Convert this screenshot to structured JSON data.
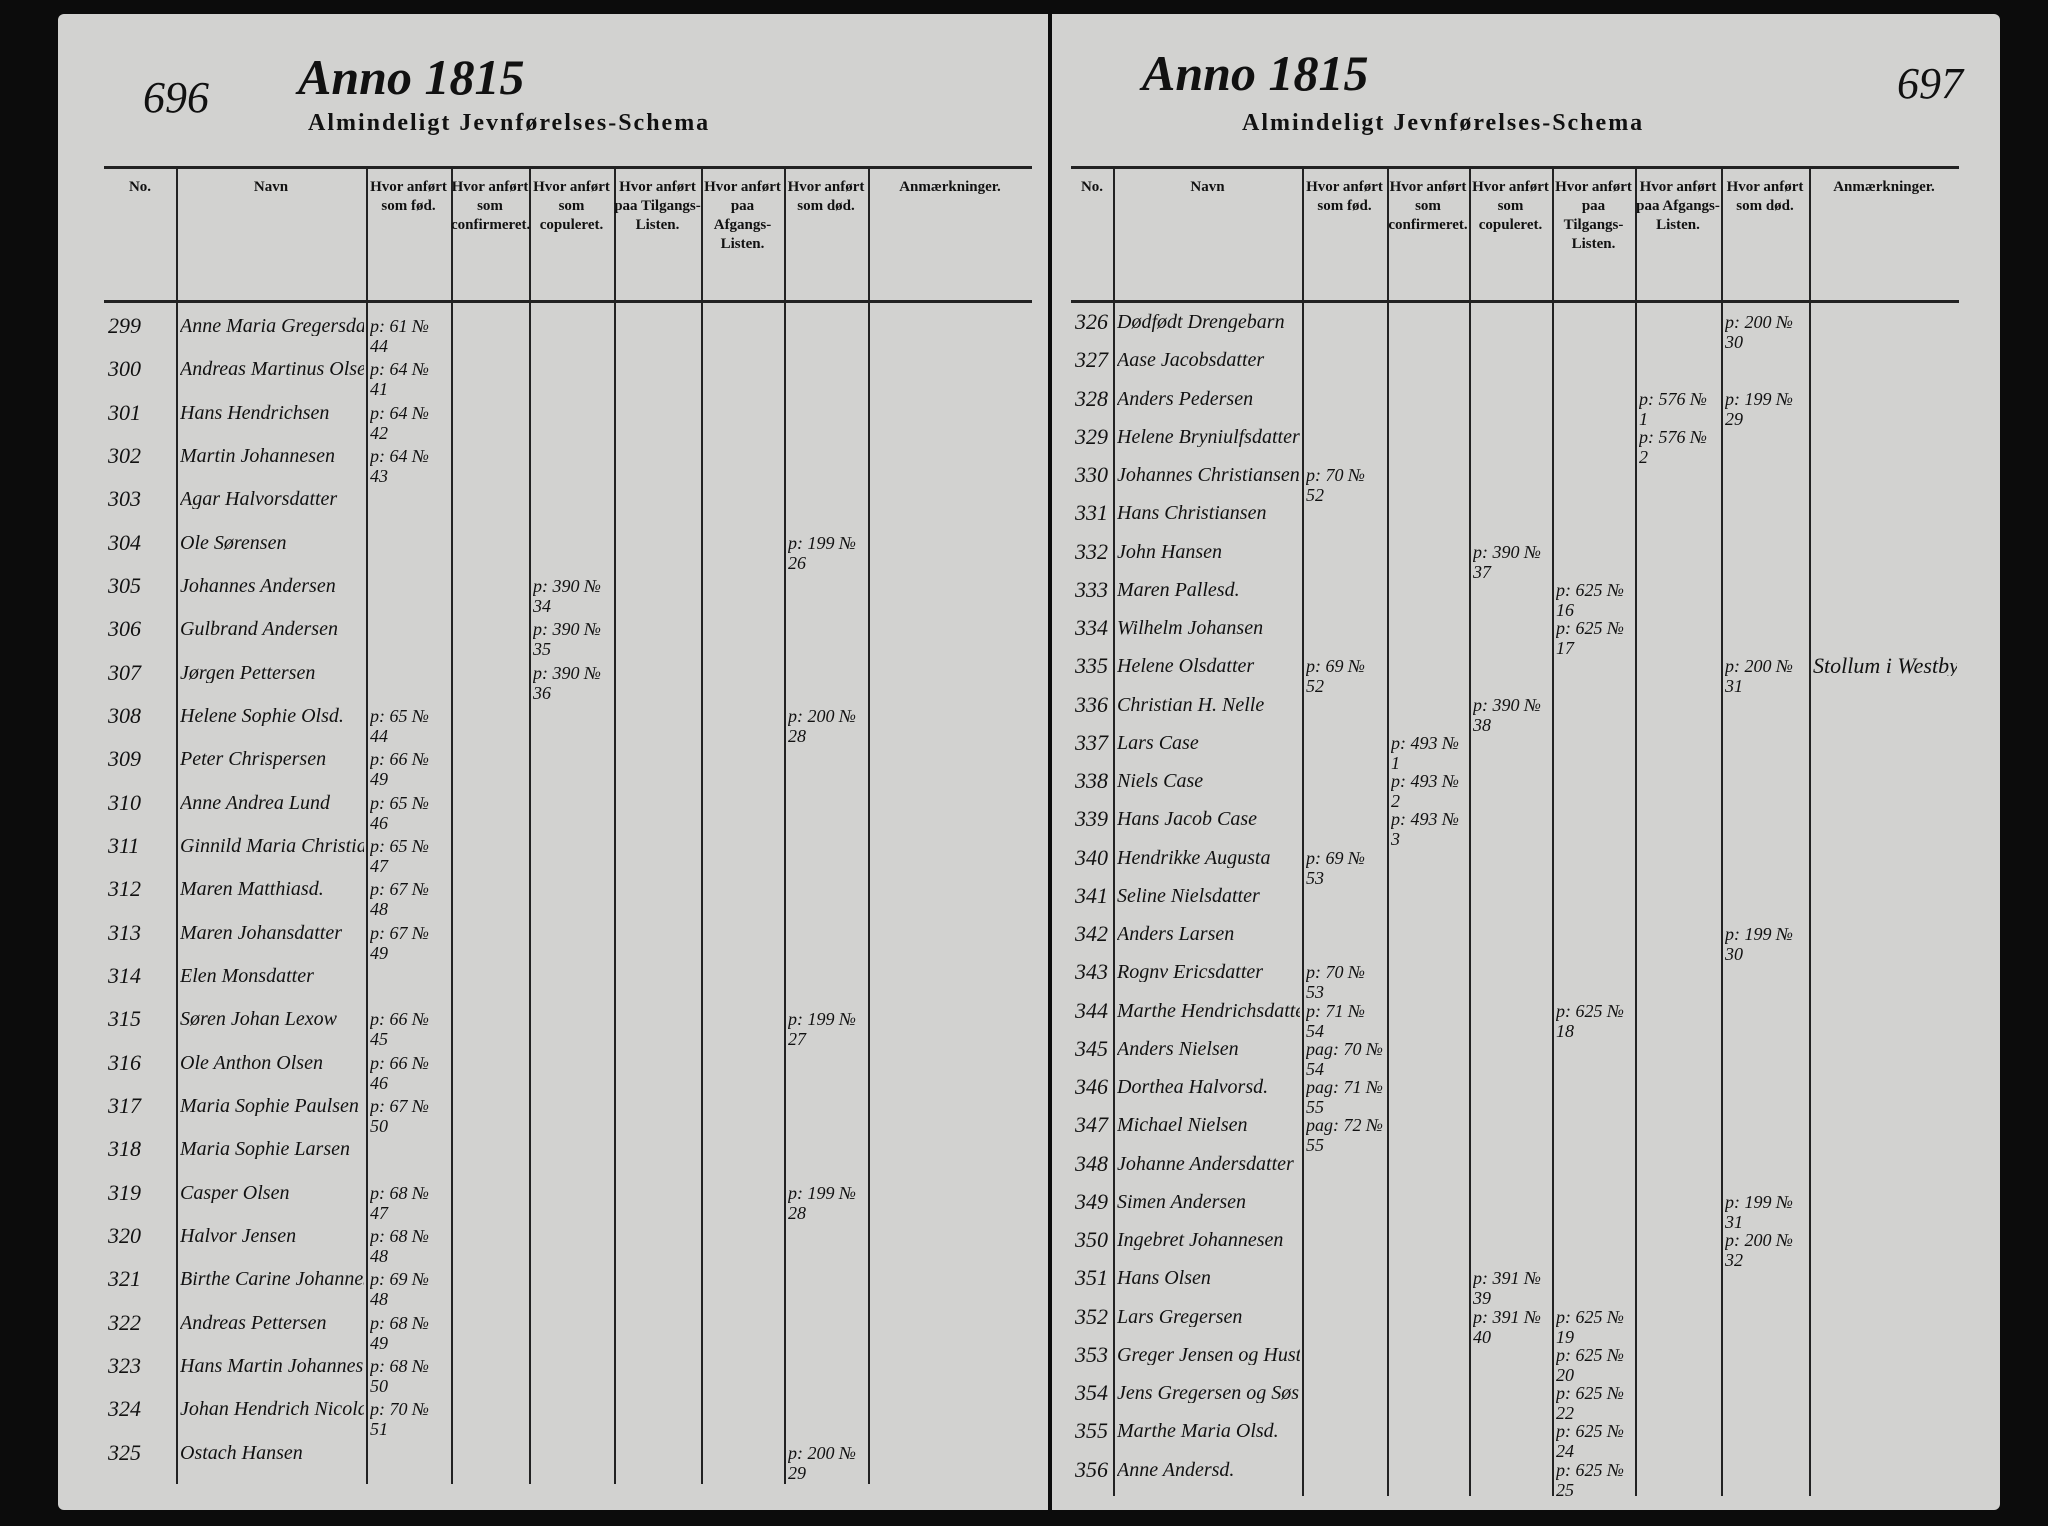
{
  "left_page": {
    "page_number": "696",
    "year_heading": "Anno 1815",
    "title": "Almindeligt Jevnførelses-Schema",
    "columns": [
      "No.",
      "Navn",
      "Hvor anført som fød.",
      "Hvor anført som confirmeret.",
      "Hvor anført som copuleret.",
      "Hvor anført paa Tilgangs-Listen.",
      "Hvor anført paa Afgangs-Listen.",
      "Hvor anført som død.",
      "Anmærkninger."
    ],
    "rows": [
      {
        "no": "299",
        "name": "Anne Maria Gregersdatter",
        "born": "p: 61 № 44"
      },
      {
        "no": "300",
        "name": "Andreas Martinus Olsen",
        "born": "p: 64 № 41"
      },
      {
        "no": "301",
        "name": "Hans Hendrichsen",
        "born": "p: 64 № 42"
      },
      {
        "no": "302",
        "name": "Martin Johannesen",
        "born": "p: 64 № 43"
      },
      {
        "no": "303",
        "name": "Agar Halvorsdatter"
      },
      {
        "no": "304",
        "name": "Ole Sørensen",
        "died": "p: 199 № 26"
      },
      {
        "no": "305",
        "name": "Johannes Andersen",
        "married": "p: 390 № 34"
      },
      {
        "no": "306",
        "name": "Gulbrand Andersen",
        "married": "p: 390 № 35"
      },
      {
        "no": "307",
        "name": "Jørgen Pettersen",
        "married": "p: 390 № 36"
      },
      {
        "no": "308",
        "name": "Helene Sophie Olsd.",
        "born": "p: 65 № 44",
        "died": "p: 200 № 28"
      },
      {
        "no": "309",
        "name": "Peter Chrispersen",
        "born": "p: 66 № 49"
      },
      {
        "no": "310",
        "name": "Anne Andrea Lund",
        "born": "p: 65 № 46"
      },
      {
        "no": "311",
        "name": "Ginnild Maria Christiansdatter",
        "born": "p: 65 № 47"
      },
      {
        "no": "312",
        "name": "Maren Matthiasd.",
        "born": "p: 67 № 48"
      },
      {
        "no": "313",
        "name": "Maren Johansdatter",
        "born": "p: 67 № 49"
      },
      {
        "no": "314",
        "name": "Elen Monsdatter"
      },
      {
        "no": "315",
        "name": "Søren Johan Lexow",
        "born": "p: 66 № 45",
        "died": "p: 199 № 27"
      },
      {
        "no": "316",
        "name": "Ole Anthon Olsen",
        "born": "p: 66 № 46"
      },
      {
        "no": "317",
        "name": "Maria Sophie Paulsen",
        "born": "p: 67 № 50"
      },
      {
        "no": "318",
        "name": "Maria Sophie Larsen"
      },
      {
        "no": "319",
        "name": "Casper Olsen",
        "born": "p: 68 № 47",
        "died": "p: 199 № 28"
      },
      {
        "no": "320",
        "name": "Halvor Jensen",
        "born": "p: 68 № 48"
      },
      {
        "no": "321",
        "name": "Birthe Carine Johannesdatter",
        "born": "p: 69 № 48"
      },
      {
        "no": "322",
        "name": "Andreas Pettersen",
        "born": "p: 68 № 49"
      },
      {
        "no": "323",
        "name": "Hans Martin Johannesen",
        "born": "p: 68 № 50"
      },
      {
        "no": "324",
        "name": "Johan Hendrich Nicolaysen",
        "born": "p: 70 № 51"
      },
      {
        "no": "325",
        "name": "Ostach Hansen",
        "died": "p: 200 № 29"
      }
    ]
  },
  "right_page": {
    "page_number": "697",
    "year_heading": "Anno 1815",
    "title": "Almindeligt Jevnførelses-Schema",
    "columns": [
      "No.",
      "Navn",
      "Hvor anført som fød.",
      "Hvor anført som confirmeret.",
      "Hvor anført som copuleret.",
      "Hvor anført paa Tilgangs-Listen.",
      "Hvor anført paa Afgangs-Listen.",
      "Hvor anført som død.",
      "Anmærkninger."
    ],
    "rows": [
      {
        "no": "326",
        "name": "Dødfødt Drengebarn",
        "died": "p: 200 № 30"
      },
      {
        "no": "327",
        "name": "Aase Jacobsdatter"
      },
      {
        "no": "328",
        "name": "Anders Pedersen",
        "departure": "p: 576 № 1",
        "died": "p: 199 № 29"
      },
      {
        "no": "329",
        "name": "Helene Bryniulfsdatter",
        "departure": "p: 576 № 2"
      },
      {
        "no": "330",
        "name": "Johannes Christiansen",
        "born": "p: 70 № 52"
      },
      {
        "no": "331",
        "name": "Hans Christiansen"
      },
      {
        "no": "332",
        "name": "John Hansen",
        "married": "p: 390 № 37"
      },
      {
        "no": "333",
        "name": "Maren Pallesd.",
        "arrival": "p: 625 № 16"
      },
      {
        "no": "334",
        "name": "Wilhelm Johansen",
        "arrival": "p: 625 № 17"
      },
      {
        "no": "335",
        "name": "Helene Olsdatter",
        "born": "p: 69 № 52",
        "died": "p: 200 № 31",
        "remarks": "Stollum i Westbye"
      },
      {
        "no": "336",
        "name": "Christian H. Nelle",
        "married": "p: 390 № 38"
      },
      {
        "no": "337",
        "name": "Lars Case",
        "confirmed": "p: 493 № 1"
      },
      {
        "no": "338",
        "name": "Niels Case",
        "confirmed": "p: 493 № 2"
      },
      {
        "no": "339",
        "name": "Hans Jacob Case",
        "confirmed": "p: 493 № 3"
      },
      {
        "no": "340",
        "name": "Hendrikke Augusta",
        "born": "p: 69 № 53"
      },
      {
        "no": "341",
        "name": "Seline Nielsdatter"
      },
      {
        "no": "342",
        "name": "Anders Larsen",
        "died": "p: 199 № 30"
      },
      {
        "no": "343",
        "name": "Rognv Ericsdatter",
        "born": "p: 70 № 53"
      },
      {
        "no": "344",
        "name": "Marthe Hendrichsdatter",
        "born": "p: 71 № 54",
        "arrival": "p: 625 № 18"
      },
      {
        "no": "345",
        "name": "Anders Nielsen",
        "born": "pag: 70 № 54"
      },
      {
        "no": "346",
        "name": "Dorthea Halvorsd.",
        "born": "pag: 71 № 55"
      },
      {
        "no": "347",
        "name": "Michael Nielsen",
        "born": "pag: 72 № 55"
      },
      {
        "no": "348",
        "name": "Johanne Andersdatter"
      },
      {
        "no": "349",
        "name": "Simen Andersen",
        "died": "p: 199 № 31"
      },
      {
        "no": "350",
        "name": "Ingebret Johannesen",
        "died": "p: 200 № 32"
      },
      {
        "no": "351",
        "name": "Hans Olsen",
        "married": "p: 391 № 39"
      },
      {
        "no": "352",
        "name": "Lars Gregersen",
        "married": "p: 391 № 40",
        "arrival": "p: 625 № 19"
      },
      {
        "no": "353",
        "name": "Greger Jensen og Hustrue",
        "arrival": "p: 625 № 20"
      },
      {
        "no": "354",
        "name": "Jens Gregersen og Søster Inger Greg.d.",
        "arrival": "p: 625 № 22"
      },
      {
        "no": "355",
        "name": "Marthe Maria Olsd.",
        "arrival": "p: 625 № 24"
      },
      {
        "no": "356",
        "name": "Anne Andersd.",
        "arrival": "p: 625 № 25"
      }
    ]
  }
}
